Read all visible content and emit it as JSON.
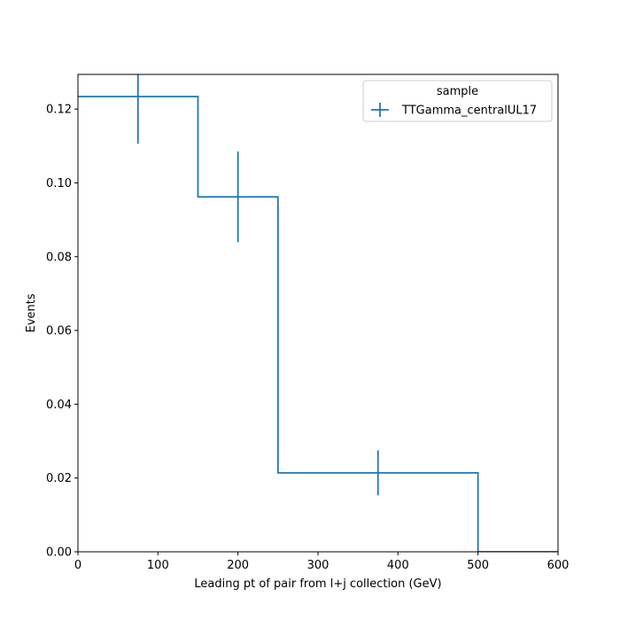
{
  "chart_data": {
    "type": "line",
    "drawstyle": "steps-histogram",
    "xlabel": "Leading pt of pair from l+j collection (GeV)",
    "ylabel": "Events",
    "xlim": [
      0,
      600
    ],
    "ylim": [
      0,
      0.1294
    ],
    "xticks": [
      0,
      100,
      200,
      300,
      400,
      500,
      600
    ],
    "xtick_labels": [
      "0",
      "100",
      "200",
      "300",
      "400",
      "500",
      "600"
    ],
    "yticks": [
      0,
      0.02,
      0.04,
      0.06,
      0.08,
      0.1,
      0.12
    ],
    "ytick_labels": [
      "0.00",
      "0.02",
      "0.04",
      "0.06",
      "0.08",
      "0.10",
      "0.12"
    ],
    "grid": false,
    "legend": {
      "title": "sample",
      "placement": "upper-right"
    },
    "series": [
      {
        "name": "TTGamma_centralUL17",
        "color": "#1f77b4",
        "bin_edges": [
          0,
          150,
          250,
          500,
          600
        ],
        "values": [
          0.1234,
          0.0962,
          0.0214,
          0.0
        ],
        "errors": [
          0.0128,
          0.0123,
          0.0061,
          0.0
        ]
      }
    ]
  }
}
